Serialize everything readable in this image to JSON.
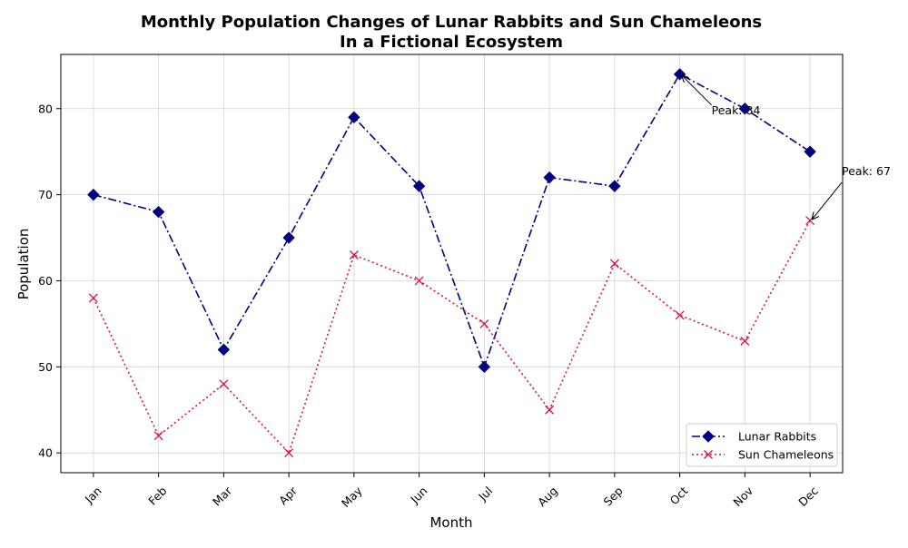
{
  "chart_data": {
    "type": "line",
    "title_lines": [
      "Monthly Population Changes of Lunar Rabbits and Sun Chameleons",
      "In a Fictional Ecosystem"
    ],
    "xlabel": "Month",
    "ylabel": "Population",
    "categories": [
      "Jan",
      "Feb",
      "Mar",
      "Apr",
      "May",
      "Jun",
      "Jul",
      "Aug",
      "Sep",
      "Oct",
      "Nov",
      "Dec"
    ],
    "ylim": [
      37.7,
      86.3
    ],
    "yticks": [
      40,
      50,
      60,
      70,
      80
    ],
    "grid": true,
    "legend_position": "bottom-right",
    "series": [
      {
        "name": "Lunar Rabbits",
        "values": [
          70,
          68,
          52,
          65,
          79,
          71,
          50,
          72,
          71,
          84,
          80,
          75
        ],
        "color": "#000080",
        "line_style": "dash-dot",
        "marker": "diamond"
      },
      {
        "name": "Sun Chameleons",
        "values": [
          58,
          42,
          48,
          40,
          63,
          60,
          55,
          45,
          62,
          56,
          53,
          67
        ],
        "color": "#dc143c",
        "line_style": "dotted",
        "marker": "x"
      }
    ],
    "annotations": [
      {
        "text": "Peak: 84",
        "series": 0,
        "category": "Oct",
        "value": 84
      },
      {
        "text": "Peak: 67",
        "series": 1,
        "category": "Dec",
        "value": 67
      }
    ]
  }
}
